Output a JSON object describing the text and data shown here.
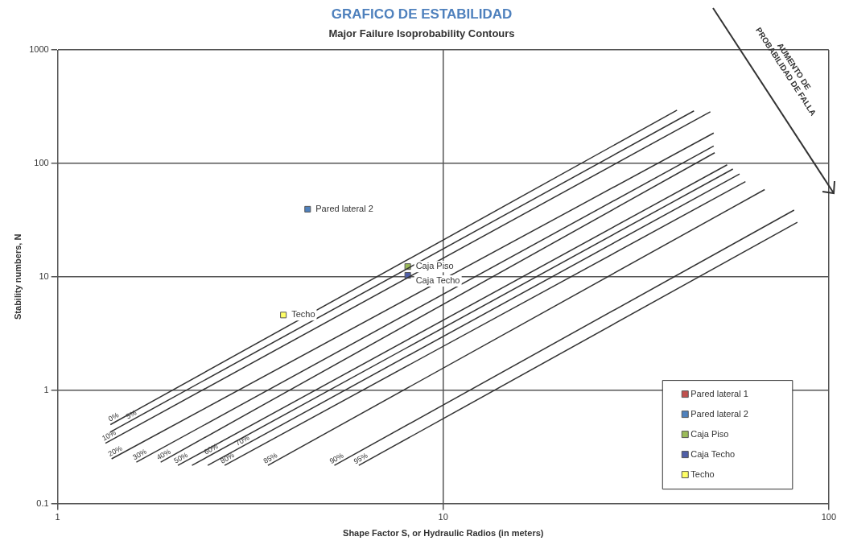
{
  "chart_data": {
    "type": "scatter",
    "title": "GRAFICO DE ESTABILIDAD",
    "subtitle": "Major Failure Isoprobability Contours",
    "xlabel": "Shape Factor S, or Hydraulic Radios (in meters)",
    "ylabel": "Stability numbers, N",
    "log": "xy",
    "xlim": [
      1,
      100
    ],
    "xticks": [
      1,
      10,
      100
    ],
    "ylim": [
      0.1,
      1000
    ],
    "yticks": [
      0.1,
      1,
      10,
      100,
      1000
    ],
    "grid": true,
    "legend": "bottom right",
    "annotations": [
      "AUMENTO DE\nPROBABILIDAD DE FALLA"
    ],
    "series": [
      {
        "name": "0%",
        "type": "line",
        "color": "#333333",
        "x": [
          1.37,
          40.4
        ],
        "values": [
          0.497,
          294
        ]
      },
      {
        "name": "5%",
        "type": "line",
        "color": "#333333",
        "x": [
          1.37,
          44.7
        ],
        "values": [
          0.428,
          290
        ]
      },
      {
        "name": "10%",
        "type": "line",
        "color": "#333333",
        "x": [
          1.33,
          49.3
        ],
        "values": [
          0.34,
          285
        ]
      },
      {
        "name": "20%",
        "type": "line",
        "color": "#333333",
        "x": [
          1.38,
          50.3
        ],
        "values": [
          0.248,
          185
        ]
      },
      {
        "name": "30%",
        "type": "line",
        "color": "#333333",
        "x": [
          1.6,
          50.3
        ],
        "values": [
          0.232,
          142
        ]
      },
      {
        "name": "40%",
        "type": "line",
        "color": "#333333",
        "x": [
          1.85,
          50.6
        ],
        "values": [
          0.232,
          124
        ]
      },
      {
        "name": "50%",
        "type": "line",
        "color": "#333333",
        "x": [
          2.05,
          54.5
        ],
        "values": [
          0.217,
          97
        ]
      },
      {
        "name": "60%",
        "type": "line",
        "color": "#333333",
        "x": [
          2.23,
          56.4
        ],
        "values": [
          0.217,
          89
        ]
      },
      {
        "name": "70%",
        "type": "line",
        "color": "#333333",
        "x": [
          2.45,
          58.7
        ],
        "values": [
          0.217,
          80.5
        ]
      },
      {
        "name": "80%",
        "type": "line",
        "color": "#333333",
        "x": [
          2.71,
          60.8
        ],
        "values": [
          0.217,
          69
        ]
      },
      {
        "name": "85%",
        "type": "line",
        "color": "#333333",
        "x": [
          3.51,
          68.2
        ],
        "values": [
          0.217,
          58.7
        ]
      },
      {
        "name": "90%",
        "type": "line",
        "color": "#333333",
        "x": [
          5.22,
          81.3
        ],
        "values": [
          0.217,
          38.7
        ]
      },
      {
        "name": "95%",
        "type": "line",
        "color": "#333333",
        "x": [
          6.04,
          82.9
        ],
        "values": [
          0.217,
          30.2
        ]
      },
      {
        "name": "Pared lateral 1",
        "color": "#c0504d",
        "marker": "square",
        "x": [
          null
        ],
        "values": [
          null
        ]
      },
      {
        "name": "Pared lateral 2",
        "color": "#4f81bd",
        "marker": "square",
        "x": [
          4.45
        ],
        "values": [
          39.4
        ]
      },
      {
        "name": "Caja Piso",
        "color": "#9bbb59",
        "marker": "square",
        "x": [
          8.09
        ],
        "values": [
          12.3
        ]
      },
      {
        "name": "Caja Techo",
        "color": "#4f5fa8",
        "marker": "square",
        "x": [
          8.09
        ],
        "values": [
          10.3
        ]
      },
      {
        "name": "Techo",
        "color": "#ffff66",
        "marker": "square",
        "x": [
          3.85
        ],
        "values": [
          4.6
        ]
      }
    ]
  }
}
